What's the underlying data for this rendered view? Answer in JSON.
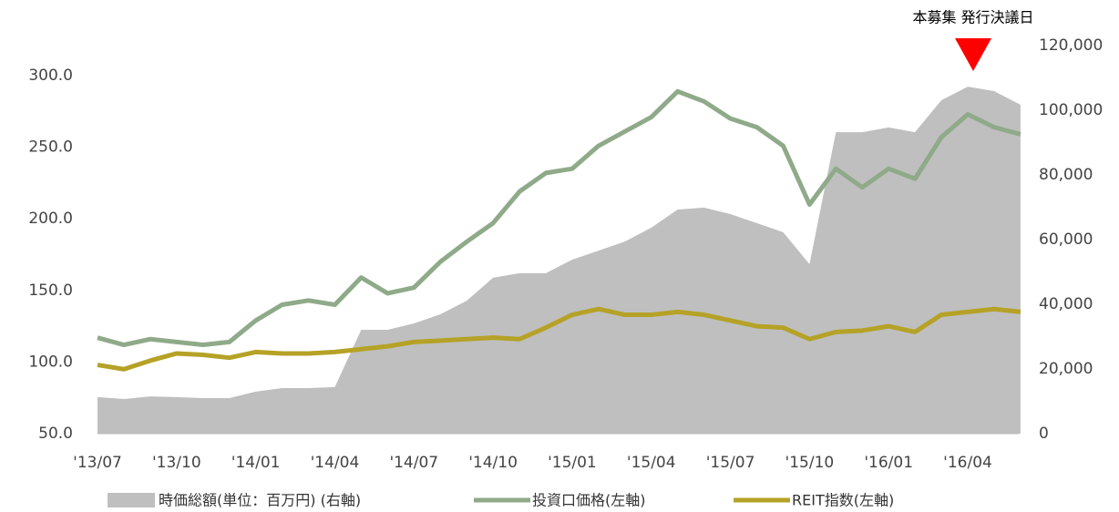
{
  "chart_data": {
    "type": "line",
    "annotation": "本募集 発行決議日",
    "categories": [
      "'13/07",
      null,
      null,
      "'13/10",
      null,
      null,
      "'14/01",
      null,
      null,
      "'14/04",
      null,
      null,
      "'14/07",
      null,
      null,
      "'14/10",
      null,
      null,
      "'15/01",
      null,
      null,
      "'15/04",
      null,
      null,
      "'15/07",
      null,
      null,
      "'15/10",
      null,
      null,
      "'16/01",
      null,
      null,
      "'16/04",
      null,
      null
    ],
    "series": [
      {
        "name": "時価総額(単位：百万円) (右軸)",
        "type": "area",
        "axis": "y2",
        "color": "#bfbfbf",
        "values": [
          11300,
          10700,
          11500,
          11300,
          11000,
          11000,
          13000,
          14100,
          14100,
          14400,
          32100,
          32100,
          34100,
          36900,
          41100,
          48200,
          49600,
          49600,
          53800,
          56600,
          59400,
          63700,
          69300,
          69900,
          67900,
          65100,
          62300,
          52400,
          93200,
          93200,
          94700,
          93200,
          103100,
          107300,
          105900,
          101700
        ]
      },
      {
        "name": "投資口価格(左軸)",
        "type": "line",
        "color": "#8faa89",
        "values": [
          117,
          112,
          116,
          114,
          112,
          114,
          129,
          140,
          143,
          140,
          159,
          148,
          152,
          170,
          184,
          197,
          219,
          232,
          235,
          251,
          261,
          271,
          289,
          282,
          270,
          264,
          251,
          210,
          235,
          222,
          235,
          228,
          257,
          273,
          264,
          259
        ]
      },
      {
        "name": "REIT指数(左軸)",
        "type": "line",
        "color": "#b5a226",
        "values": [
          98,
          95,
          101,
          106,
          105,
          103,
          107,
          106,
          106,
          107,
          109,
          111,
          114,
          115,
          116,
          117,
          116,
          124,
          133,
          137,
          133,
          133,
          135,
          133,
          129,
          125,
          124,
          116,
          121,
          122,
          125,
          121,
          133,
          135,
          137,
          135
        ]
      }
    ],
    "ylim": [
      50,
      321
    ],
    "yticks": [
      {
        "value": 50,
        "label": "50.0"
      },
      {
        "value": 100,
        "label": "100.0"
      },
      {
        "value": 150,
        "label": "150.0"
      },
      {
        "value": 200,
        "label": "200.0"
      },
      {
        "value": 250,
        "label": "250.0"
      },
      {
        "value": 300,
        "label": "300.0"
      }
    ],
    "y2lim": [
      0,
      120000
    ],
    "y2ticks": [
      0,
      {
        "value": 20000,
        "label": "20,000"
      },
      {
        "value": 40000,
        "label": "40,000"
      },
      {
        "value": 60000,
        "label": "60,000"
      },
      {
        "value": 80000,
        "label": "80,000"
      },
      {
        "value": 100000,
        "label": "100,000"
      },
      {
        "value": 120000,
        "label": "120,000"
      }
    ]
  }
}
